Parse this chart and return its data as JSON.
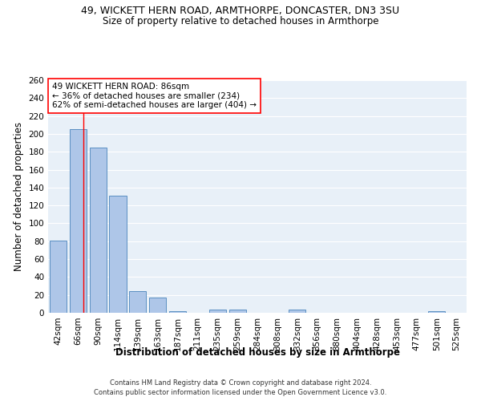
{
  "title1": "49, WICKETT HERN ROAD, ARMTHORPE, DONCASTER, DN3 3SU",
  "title2": "Size of property relative to detached houses in Armthorpe",
  "xlabel": "Distribution of detached houses by size in Armthorpe",
  "ylabel": "Number of detached properties",
  "footnote1": "Contains HM Land Registry data © Crown copyright and database right 2024.",
  "footnote2": "Contains public sector information licensed under the Open Government Licence v3.0.",
  "bar_labels": [
    "42sqm",
    "66sqm",
    "90sqm",
    "114sqm",
    "139sqm",
    "163sqm",
    "187sqm",
    "211sqm",
    "235sqm",
    "259sqm",
    "284sqm",
    "308sqm",
    "332sqm",
    "356sqm",
    "380sqm",
    "404sqm",
    "428sqm",
    "453sqm",
    "477sqm",
    "501sqm",
    "525sqm"
  ],
  "bar_values": [
    81,
    205,
    185,
    131,
    24,
    17,
    2,
    0,
    4,
    4,
    0,
    0,
    4,
    0,
    0,
    0,
    0,
    0,
    0,
    2,
    0
  ],
  "bar_color": "#aec6e8",
  "bar_edge_color": "#5a8fc2",
  "annotation_box_text": "49 WICKETT HERN ROAD: 86sqm\n← 36% of detached houses are smaller (234)\n62% of semi-detached houses are larger (404) →",
  "ylim": [
    0,
    260
  ],
  "yticks": [
    0,
    20,
    40,
    60,
    80,
    100,
    120,
    140,
    160,
    180,
    200,
    220,
    240,
    260
  ],
  "background_color": "#e8f0f8",
  "grid_color": "#ffffff",
  "title_fontsize": 9,
  "subtitle_fontsize": 8.5,
  "axis_label_fontsize": 8.5,
  "tick_fontsize": 7.5,
  "annotation_fontsize": 7.5,
  "footnote_fontsize": 6.0
}
